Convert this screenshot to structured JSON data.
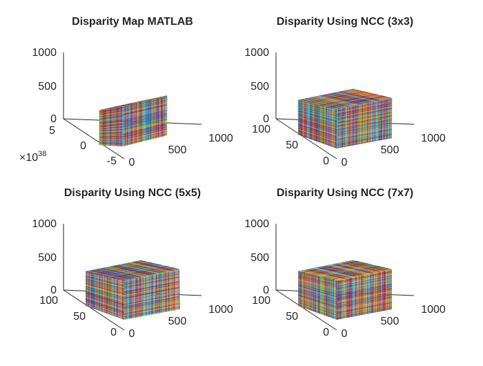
{
  "figure": {
    "background": "#ffffff",
    "palette": [
      "#0072BD",
      "#D95319",
      "#EDB120",
      "#7E2F8E",
      "#77AC30",
      "#4DBEEE",
      "#A2142F"
    ]
  },
  "chart_data": [
    {
      "type": "line3d",
      "title": "Disparity Map MATLAB",
      "z_ticks": [
        "0",
        "500",
        "1000"
      ],
      "x_ticks": [
        "0",
        "500",
        "1000"
      ],
      "y_ticks": [
        "-5",
        "0",
        "5"
      ],
      "y_exponent": {
        "base": "×10",
        "power": "38"
      },
      "zlim": [
        0,
        1000
      ],
      "xlim": [
        0,
        1000
      ],
      "ylim": [
        -5,
        5
      ],
      "grid": false,
      "legend": "none"
    },
    {
      "type": "line3d",
      "title": "Disparity Using NCC (3x3)",
      "z_ticks": [
        "0",
        "500",
        "1000"
      ],
      "x_ticks": [
        "0",
        "500",
        "1000"
      ],
      "y_ticks": [
        "0",
        "50",
        "100"
      ],
      "zlim": [
        0,
        1000
      ],
      "xlim": [
        0,
        1000
      ],
      "ylim": [
        0,
        100
      ],
      "grid": false,
      "legend": "none"
    },
    {
      "type": "line3d",
      "title": "Disparity Using NCC (5x5)",
      "z_ticks": [
        "0",
        "500",
        "1000"
      ],
      "x_ticks": [
        "0",
        "500",
        "1000"
      ],
      "y_ticks": [
        "0",
        "50",
        "100"
      ],
      "zlim": [
        0,
        1000
      ],
      "xlim": [
        0,
        1000
      ],
      "ylim": [
        0,
        100
      ],
      "grid": false,
      "legend": "none"
    },
    {
      "type": "line3d",
      "title": "Disparity Using NCC (7x7)",
      "z_ticks": [
        "0",
        "500",
        "1000"
      ],
      "x_ticks": [
        "0",
        "500",
        "1000"
      ],
      "y_ticks": [
        "0",
        "50",
        "100"
      ],
      "zlim": [
        0,
        1000
      ],
      "xlim": [
        0,
        1000
      ],
      "ylim": [
        0,
        100
      ],
      "grid": false,
      "legend": "none"
    }
  ]
}
